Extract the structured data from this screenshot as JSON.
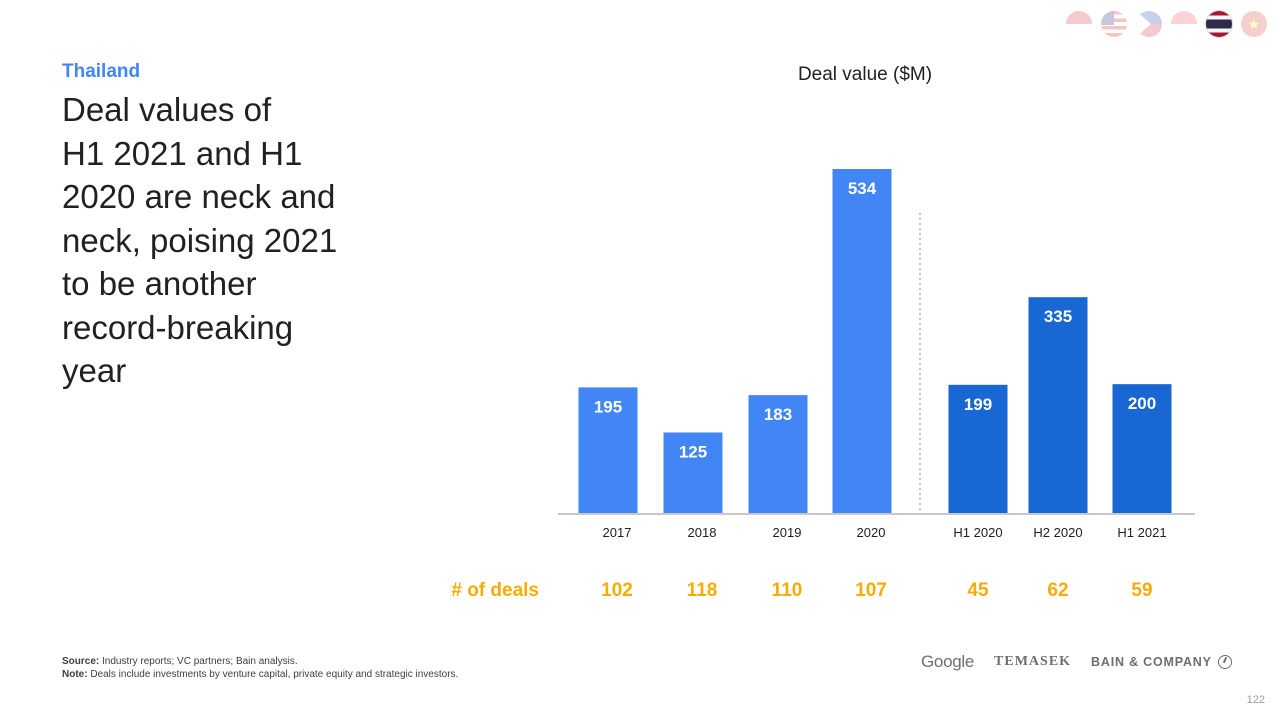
{
  "header": {
    "country": "Thailand",
    "headline_lines": [
      "Deal values of",
      "H1 2021 and H1",
      "2020 are neck and",
      "neck, poising 2021",
      "to be another",
      "record-breaking",
      "year"
    ]
  },
  "flags": [
    {
      "name": "indonesia-flag-icon",
      "active": false
    },
    {
      "name": "malaysia-flag-icon",
      "active": false
    },
    {
      "name": "philippines-flag-icon",
      "active": false
    },
    {
      "name": "singapore-flag-icon",
      "active": false
    },
    {
      "name": "thailand-flag-icon",
      "active": true
    },
    {
      "name": "vietnam-flag-icon",
      "active": false
    }
  ],
  "chart_data": {
    "type": "bar",
    "title": "Deal value ($M)",
    "categories": [
      "2017",
      "2018",
      "2019",
      "2020",
      "H1 2020",
      "H2 2020",
      "H1 2021"
    ],
    "values": [
      195,
      125,
      183,
      534,
      199,
      335,
      200
    ],
    "deals_label": "# of deals",
    "deals": [
      102,
      118,
      110,
      107,
      45,
      62,
      59
    ],
    "ylim": [
      0,
      534
    ],
    "grid": false,
    "colors": {
      "annual": "#4285f4",
      "half_year": "#1967d2",
      "deals": "#f9ab00"
    }
  },
  "footer": {
    "source_label": "Source:",
    "source_text": " Industry reports; VC partners; Bain analysis.",
    "note_label": "Note:",
    "note_text": " Deals include investments by venture capital, private equity and strategic investors."
  },
  "logos": {
    "google": "Google",
    "temasek": "TEMASEK",
    "bain": "BAIN & COMPANY"
  },
  "page_number": "122"
}
